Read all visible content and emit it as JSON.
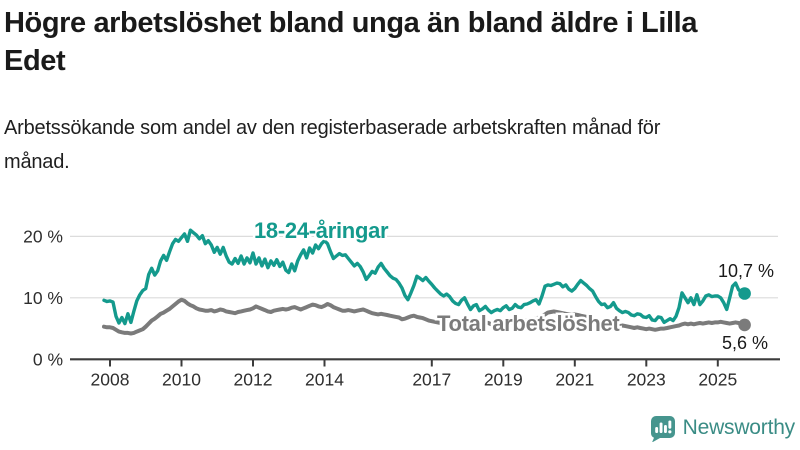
{
  "title": "Högre arbetslöshet bland unga än bland äldre i Lilla Edet",
  "subtitle": "Arbetssökande som andel av den registerbaserade arbetskraften månad för månad.",
  "branding": {
    "name": "Newsworthy",
    "icon": "newsworthy-speech-bubble-chart-icon",
    "icon_color": "#46958e",
    "text_color": "#3a8c85"
  },
  "chart_data": {
    "type": "line",
    "unit": "%",
    "grid": "horizontal",
    "legend_position": "inline-labels",
    "x_axis": {
      "ticks": [
        2008,
        2010,
        2012,
        2014,
        2017,
        2019,
        2021,
        2023,
        2025
      ],
      "start_year_decimal": 2007.8333,
      "end_year_decimal": 2025.75,
      "interval_months": 1
    },
    "y_axis": {
      "ticks": [
        0,
        10,
        20
      ],
      "tick_labels": [
        "0 %",
        "10 %",
        "20 %"
      ],
      "min": 0,
      "max": 22.5
    },
    "series": [
      {
        "name": "18-24-åringar",
        "color": "#149a8d",
        "end_label": "10,7 %",
        "end_value": 10.7,
        "start_year_decimal": 2007.8333,
        "values": [
          9.6,
          9.4,
          9.5,
          9.3,
          7.0,
          5.9,
          6.8,
          5.8,
          7.4,
          6.0,
          7.8,
          9.5,
          10.5,
          11.2,
          11.5,
          13.8,
          14.8,
          13.7,
          14.4,
          16.0,
          16.9,
          16.1,
          17.5,
          18.8,
          19.5,
          19.2,
          19.8,
          20.4,
          19.2,
          21.0,
          20.6,
          20.2,
          19.6,
          20.1,
          18.8,
          19.3,
          18.6,
          17.4,
          18.2,
          17.1,
          18.2,
          16.8,
          15.8,
          15.5,
          16.4,
          15.6,
          16.8,
          15.5,
          16.5,
          15.7,
          17.3,
          15.5,
          16.5,
          15.2,
          16.3,
          14.9,
          16.0,
          15.3,
          16.2,
          15.1,
          15.8,
          14.5,
          14.1,
          15.5,
          14.4,
          16.0,
          17.0,
          17.8,
          16.5,
          18.1,
          17.3,
          18.6,
          18.0,
          18.8,
          19.3,
          18.8,
          17.5,
          16.4,
          16.8,
          17.2,
          16.9,
          17.0,
          16.4,
          15.8,
          15.2,
          15.6,
          15.1,
          14.2,
          13.0,
          13.6,
          14.3,
          14.0,
          15.0,
          15.6,
          14.8,
          14.2,
          13.6,
          13.2,
          13.0,
          12.4,
          11.6,
          10.4,
          9.7,
          10.8,
          12.0,
          13.5,
          13.2,
          12.8,
          13.3,
          12.7,
          12.2,
          11.6,
          11.1,
          10.6,
          10.3,
          10.6,
          10.2,
          9.5,
          9.1,
          8.9,
          9.6,
          10.0,
          9.0,
          8.1,
          8.7,
          8.9,
          7.9,
          8.2,
          8.6,
          8.0,
          7.6,
          7.9,
          8.1,
          7.9,
          8.4,
          8.7,
          8.1,
          8.3,
          8.9,
          8.5,
          8.4,
          8.9,
          9.0,
          9.2,
          9.5,
          9.7,
          9.0,
          10.3,
          11.9,
          12.1,
          12.0,
          12.2,
          12.4,
          12.3,
          11.8,
          12.1,
          11.4,
          11.1,
          11.5,
          12.2,
          12.8,
          12.4,
          12.0,
          11.5,
          11.1,
          10.2,
          9.4,
          8.9,
          9.0,
          8.4,
          8.6,
          9.2,
          8.3,
          7.9,
          7.6,
          7.8,
          7.6,
          7.2,
          7.1,
          7.4,
          7.3,
          6.9,
          6.8,
          7.1,
          6.4,
          6.3,
          6.9,
          6.8,
          6.0,
          6.3,
          6.6,
          6.3,
          7.0,
          8.4,
          10.8,
          10.0,
          9.2,
          10.0,
          8.9,
          10.5,
          8.9,
          9.5,
          10.3,
          10.5,
          10.2,
          10.3,
          10.3,
          10.0,
          9.2,
          8.1,
          10.0,
          11.9,
          12.4,
          11.3,
          10.9,
          10.7
        ]
      },
      {
        "name": "Total arbetslöshet",
        "color": "#7b7b7b",
        "end_label": "5,6 %",
        "end_value": 5.6,
        "start_year_decimal": 2007.8333,
        "values": [
          5.3,
          5.2,
          5.2,
          5.1,
          4.8,
          4.5,
          4.4,
          4.3,
          4.3,
          4.2,
          4.3,
          4.5,
          4.7,
          4.9,
          5.3,
          5.8,
          6.3,
          6.6,
          7.0,
          7.4,
          7.6,
          7.9,
          8.2,
          8.6,
          9.0,
          9.4,
          9.7,
          9.5,
          9.1,
          8.8,
          8.6,
          8.3,
          8.1,
          8.0,
          7.9,
          7.9,
          8.0,
          7.8,
          7.9,
          8.1,
          8.0,
          7.8,
          7.7,
          7.6,
          7.5,
          7.7,
          7.8,
          7.9,
          8.0,
          8.1,
          8.3,
          8.6,
          8.4,
          8.2,
          8.0,
          7.8,
          7.7,
          7.9,
          8.0,
          8.1,
          8.2,
          8.1,
          8.2,
          8.4,
          8.5,
          8.3,
          8.1,
          8.3,
          8.5,
          8.7,
          8.9,
          8.8,
          8.6,
          8.5,
          8.7,
          9.0,
          8.8,
          8.5,
          8.3,
          8.1,
          7.9,
          7.9,
          8.0,
          7.9,
          7.8,
          7.9,
          8.0,
          8.1,
          7.9,
          7.7,
          7.5,
          7.4,
          7.3,
          7.4,
          7.3,
          7.2,
          7.1,
          7.0,
          6.9,
          6.8,
          6.5,
          6.6,
          6.8,
          7.0,
          7.1,
          6.9,
          6.8,
          6.7,
          6.5,
          6.3,
          6.2,
          6.1,
          6.0,
          5.9,
          5.8,
          6.0,
          6.1,
          5.9,
          5.8,
          5.9,
          6.0,
          6.1,
          6.2,
          6.1,
          6.0,
          5.9,
          5.8,
          5.9,
          6.0,
          5.9,
          5.7,
          5.8,
          5.9,
          6.0,
          6.1,
          6.2,
          6.1,
          6.0,
          6.1,
          6.2,
          6.1,
          6.2,
          6.3,
          6.4,
          6.5,
          6.6,
          6.8,
          7.0,
          7.3,
          7.6,
          7.7,
          7.8,
          7.7,
          7.6,
          7.5,
          7.4,
          7.3,
          7.2,
          7.3,
          7.2,
          7.1,
          7.0,
          6.9,
          6.7,
          6.5,
          6.3,
          6.1,
          6.0,
          5.9,
          5.8,
          5.7,
          5.6,
          5.5,
          5.4,
          5.5,
          5.4,
          5.3,
          5.2,
          5.1,
          5.2,
          5.1,
          5.0,
          4.9,
          5.0,
          4.9,
          4.8,
          4.9,
          5.0,
          5.0,
          5.1,
          5.2,
          5.3,
          5.4,
          5.5,
          5.7,
          5.8,
          5.7,
          5.8,
          5.7,
          5.8,
          5.9,
          5.8,
          5.9,
          6.0,
          5.9,
          6.0,
          6.0,
          6.1,
          6.0,
          5.9,
          5.8,
          5.9,
          6.0,
          5.9,
          5.7,
          5.6
        ]
      }
    ]
  }
}
